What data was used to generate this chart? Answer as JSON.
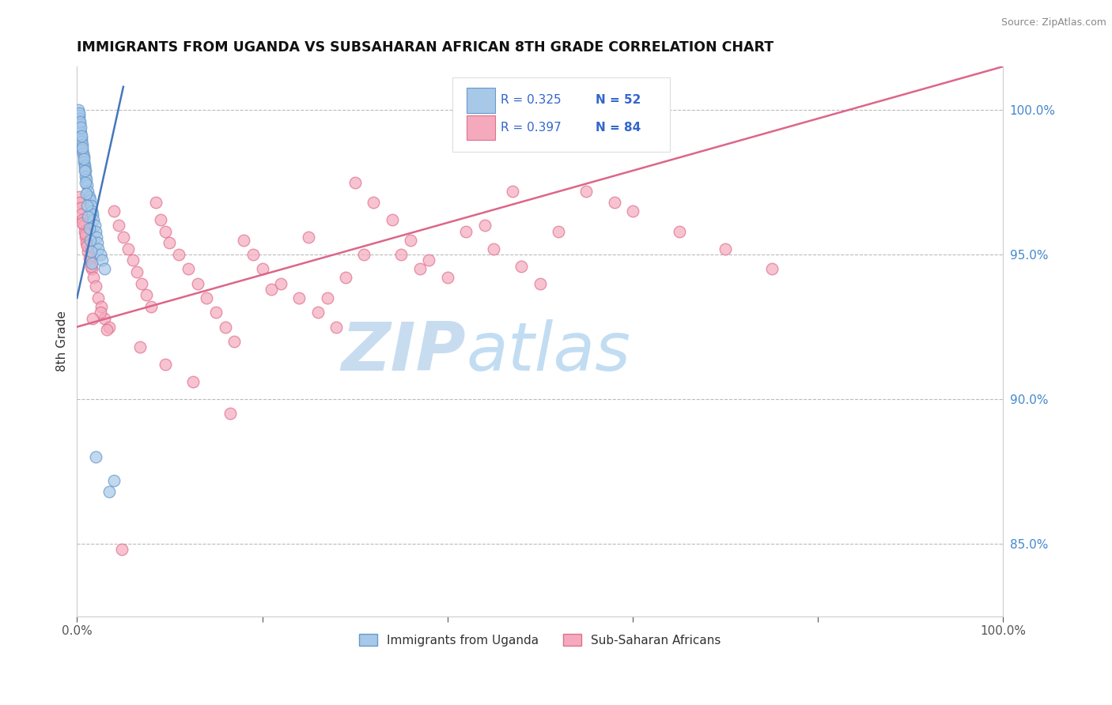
{
  "title": "IMMIGRANTS FROM UGANDA VS SUBSAHARAN AFRICAN 8TH GRADE CORRELATION CHART",
  "source": "Source: ZipAtlas.com",
  "ylabel": "8th Grade",
  "legend_labels": [
    "Immigrants from Uganda",
    "Sub-Saharan Africans"
  ],
  "legend_R": [
    "R = 0.325",
    "R = 0.397"
  ],
  "legend_N": [
    "N = 52",
    "N = 84"
  ],
  "blue_color": "#A8C8E8",
  "blue_edge_color": "#6699CC",
  "pink_color": "#F4AABC",
  "pink_edge_color": "#E07090",
  "blue_line_color": "#4477BB",
  "pink_line_color": "#DD6688",
  "right_yticks": [
    85.0,
    90.0,
    95.0,
    100.0
  ],
  "right_ytick_labels": [
    "85.0%",
    "90.0%",
    "95.0%",
    "100.0%"
  ],
  "xlim": [
    0.0,
    100.0
  ],
  "ylim": [
    82.5,
    101.5
  ],
  "blue_scatter_x": [
    0.15,
    0.2,
    0.25,
    0.3,
    0.35,
    0.4,
    0.45,
    0.5,
    0.55,
    0.6,
    0.65,
    0.7,
    0.75,
    0.8,
    0.85,
    0.9,
    0.95,
    1.0,
    1.1,
    1.2,
    1.3,
    1.4,
    1.5,
    1.6,
    1.7,
    1.8,
    1.9,
    2.0,
    2.1,
    2.2,
    2.3,
    2.5,
    2.7,
    3.0,
    3.5,
    4.0,
    0.2,
    0.3,
    0.4,
    0.5,
    0.6,
    0.7,
    0.8,
    0.9,
    1.0,
    1.1,
    1.2,
    1.3,
    1.4,
    1.5,
    1.6,
    2.0
  ],
  "blue_scatter_y": [
    100.0,
    99.8,
    99.7,
    99.5,
    99.3,
    99.2,
    99.0,
    98.9,
    98.8,
    98.6,
    98.5,
    98.4,
    98.2,
    98.1,
    98.0,
    97.9,
    97.7,
    97.6,
    97.4,
    97.2,
    97.0,
    96.9,
    96.7,
    96.5,
    96.4,
    96.2,
    96.0,
    95.8,
    95.6,
    95.4,
    95.2,
    95.0,
    94.8,
    94.5,
    86.8,
    87.2,
    99.9,
    99.6,
    99.4,
    99.1,
    98.7,
    98.3,
    97.9,
    97.5,
    97.1,
    96.7,
    96.3,
    95.9,
    95.5,
    95.1,
    94.7,
    88.0
  ],
  "pink_scatter_x": [
    0.2,
    0.3,
    0.4,
    0.5,
    0.6,
    0.7,
    0.8,
    0.9,
    1.0,
    1.2,
    1.4,
    1.6,
    1.8,
    2.0,
    2.3,
    2.6,
    3.0,
    3.5,
    4.0,
    4.5,
    5.0,
    5.5,
    6.0,
    6.5,
    7.0,
    7.5,
    8.0,
    8.5,
    9.0,
    9.5,
    10.0,
    11.0,
    12.0,
    13.0,
    14.0,
    15.0,
    16.0,
    17.0,
    18.0,
    19.0,
    20.0,
    22.0,
    24.0,
    26.0,
    28.0,
    30.0,
    32.0,
    34.0,
    36.0,
    38.0,
    40.0,
    42.0,
    45.0,
    48.0,
    50.0,
    55.0,
    60.0,
    65.0,
    70.0,
    75.0,
    1.1,
    1.3,
    1.5,
    2.5,
    3.2,
    6.8,
    9.5,
    12.5,
    16.5,
    21.0,
    25.0,
    29.0,
    35.0,
    47.0,
    52.0,
    27.0,
    31.0,
    37.0,
    44.0,
    58.0,
    0.6,
    0.9,
    1.7,
    4.8
  ],
  "pink_scatter_y": [
    97.0,
    96.8,
    96.6,
    96.4,
    96.2,
    96.0,
    95.8,
    95.6,
    95.4,
    95.1,
    94.8,
    94.5,
    94.2,
    93.9,
    93.5,
    93.2,
    92.8,
    92.5,
    96.5,
    96.0,
    95.6,
    95.2,
    94.8,
    94.4,
    94.0,
    93.6,
    93.2,
    96.8,
    96.2,
    95.8,
    95.4,
    95.0,
    94.5,
    94.0,
    93.5,
    93.0,
    92.5,
    92.0,
    95.5,
    95.0,
    94.5,
    94.0,
    93.5,
    93.0,
    92.5,
    97.5,
    96.8,
    96.2,
    95.5,
    94.8,
    94.2,
    95.8,
    95.2,
    94.6,
    94.0,
    97.2,
    96.5,
    95.8,
    95.2,
    94.5,
    95.3,
    94.9,
    94.6,
    93.0,
    92.4,
    91.8,
    91.2,
    90.6,
    89.5,
    93.8,
    95.6,
    94.2,
    95.0,
    97.2,
    95.8,
    93.5,
    95.0,
    94.5,
    96.0,
    96.8,
    96.1,
    95.7,
    92.8,
    84.8
  ],
  "watermark_zip": "ZIP",
  "watermark_atlas": "atlas",
  "watermark_color": "#C8DCF0",
  "blue_trend_x": [
    0.0,
    5.0
  ],
  "blue_trend_y": [
    93.5,
    100.8
  ],
  "pink_trend_x": [
    0.0,
    100.0
  ],
  "pink_trend_y": [
    92.5,
    101.5
  ]
}
